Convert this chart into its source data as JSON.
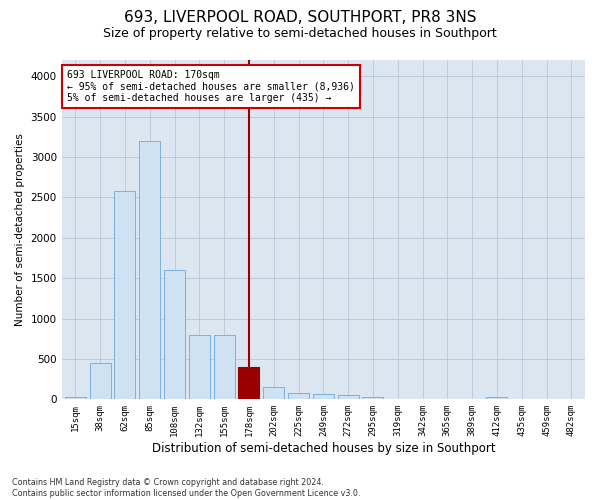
{
  "title": "693, LIVERPOOL ROAD, SOUTHPORT, PR8 3NS",
  "subtitle": "Size of property relative to semi-detached houses in Southport",
  "xlabel": "Distribution of semi-detached houses by size in Southport",
  "ylabel": "Number of semi-detached properties",
  "footnote": "Contains HM Land Registry data © Crown copyright and database right 2024.\nContains public sector information licensed under the Open Government Licence v3.0.",
  "bar_labels": [
    "15sqm",
    "38sqm",
    "62sqm",
    "85sqm",
    "108sqm",
    "132sqm",
    "155sqm",
    "178sqm",
    "202sqm",
    "225sqm",
    "249sqm",
    "272sqm",
    "295sqm",
    "319sqm",
    "342sqm",
    "365sqm",
    "389sqm",
    "412sqm",
    "435sqm",
    "459sqm",
    "482sqm"
  ],
  "bar_values": [
    25,
    450,
    2580,
    3200,
    1600,
    800,
    800,
    400,
    150,
    80,
    70,
    50,
    25,
    10,
    5,
    0,
    0,
    25,
    0,
    0,
    0
  ],
  "bar_color": "#cfe2f3",
  "bar_edge_color": "#6fa8dc",
  "highlight_bar_index": 7,
  "highlight_color": "#990000",
  "highlight_bar_value": 400,
  "vline_color": "#990000",
  "annotation_text": "693 LIVERPOOL ROAD: 170sqm\n← 95% of semi-detached houses are smaller (8,936)\n5% of semi-detached houses are larger (435) →",
  "annotation_box_color": "#cc0000",
  "ylim": [
    0,
    4200
  ],
  "yticks": [
    0,
    500,
    1000,
    1500,
    2000,
    2500,
    3000,
    3500,
    4000
  ],
  "bg_color": "#ffffff",
  "plot_bg_color": "#dce6f1",
  "grid_color": "#b8c8d8",
  "title_fontsize": 11,
  "subtitle_fontsize": 9,
  "xlabel_fontsize": 8.5,
  "ylabel_fontsize": 7.5
}
